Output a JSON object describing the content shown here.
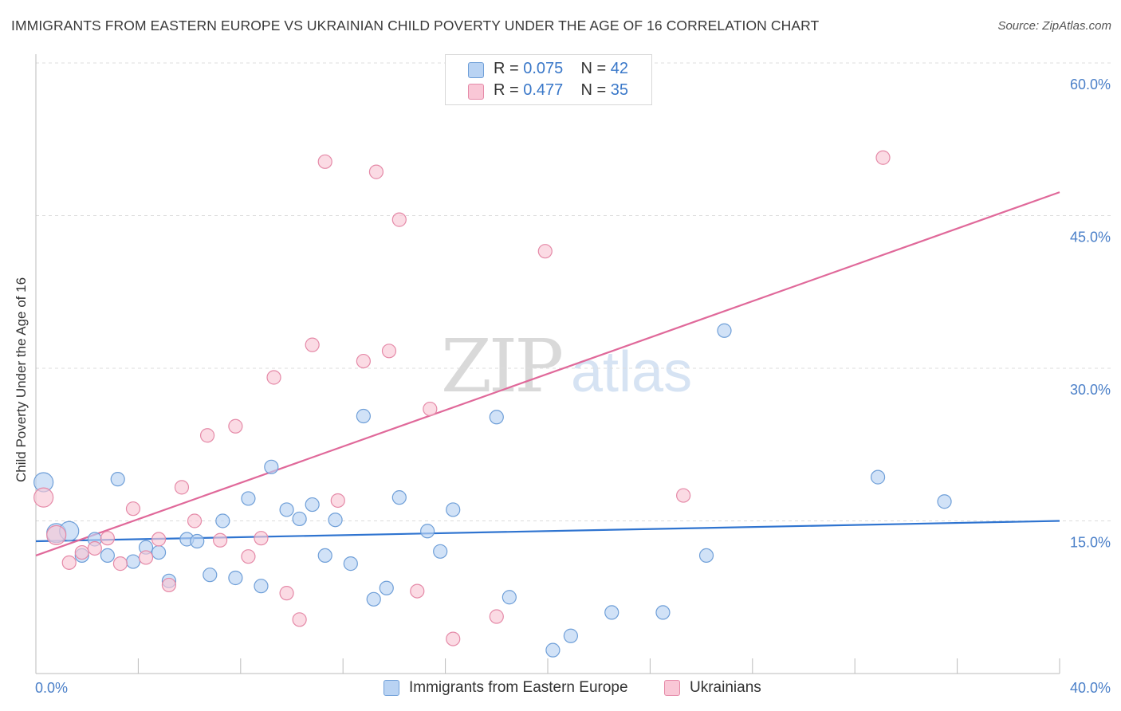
{
  "header": {
    "title": "IMMIGRANTS FROM EASTERN EUROPE VS UKRAINIAN CHILD POVERTY UNDER THE AGE OF 16 CORRELATION CHART",
    "source": "Source: ZipAtlas.com"
  },
  "watermark": {
    "zip": "ZIP",
    "atlas": "atlas"
  },
  "legend": {
    "r_label": "R =",
    "n_label": "N =",
    "series": [
      {
        "r": "0.075",
        "n": "42"
      },
      {
        "r": "0.477",
        "n": "35"
      }
    ]
  },
  "colors": {
    "blue_fill": "#b9d3f3",
    "blue_stroke": "#6f9fd8",
    "blue_line": "#2f74d0",
    "pink_fill": "#f9c7d6",
    "pink_stroke": "#e58aa8",
    "pink_line": "#e0699a",
    "tick_label": "#4a7fc8"
  },
  "chart_data": {
    "type": "scatter",
    "title": "IMMIGRANTS FROM EASTERN EUROPE VS UKRAINIAN CHILD POVERTY UNDER THE AGE OF 16 CORRELATION CHART",
    "xlabel": "",
    "ylabel": "Child Poverty Under the Age of 16",
    "xlim": [
      0,
      40
    ],
    "ylim": [
      0,
      60
    ],
    "x_tick_labels": [
      "0.0%",
      "40.0%"
    ],
    "y_ticks": [
      15,
      30,
      45,
      60
    ],
    "y_tick_labels": [
      "15.0%",
      "30.0%",
      "45.0%",
      "60.0%"
    ],
    "series": [
      {
        "name": "Immigrants from Eastern Europe",
        "color": "blue",
        "trend": {
          "x": [
            0,
            40
          ],
          "y": [
            13.0,
            15.0
          ]
        },
        "points": [
          {
            "x": 0.3,
            "y": 18.8,
            "big": true
          },
          {
            "x": 0.8,
            "y": 13.8,
            "big": true
          },
          {
            "x": 1.3,
            "y": 14.0,
            "big": true
          },
          {
            "x": 1.8,
            "y": 11.6
          },
          {
            "x": 2.3,
            "y": 13.2
          },
          {
            "x": 2.8,
            "y": 11.6
          },
          {
            "x": 3.2,
            "y": 19.1
          },
          {
            "x": 3.8,
            "y": 11.0
          },
          {
            "x": 4.3,
            "y": 12.4
          },
          {
            "x": 4.8,
            "y": 11.9
          },
          {
            "x": 5.2,
            "y": 9.1
          },
          {
            "x": 5.9,
            "y": 13.2
          },
          {
            "x": 6.3,
            "y": 13.0
          },
          {
            "x": 6.8,
            "y": 9.7
          },
          {
            "x": 7.3,
            "y": 15.0
          },
          {
            "x": 7.8,
            "y": 9.4
          },
          {
            "x": 8.3,
            "y": 17.2
          },
          {
            "x": 8.8,
            "y": 8.6
          },
          {
            "x": 9.2,
            "y": 20.3
          },
          {
            "x": 9.8,
            "y": 16.1
          },
          {
            "x": 10.3,
            "y": 15.2
          },
          {
            "x": 10.8,
            "y": 16.6
          },
          {
            "x": 11.3,
            "y": 11.6
          },
          {
            "x": 11.7,
            "y": 15.1
          },
          {
            "x": 12.3,
            "y": 10.8
          },
          {
            "x": 12.8,
            "y": 25.3
          },
          {
            "x": 13.2,
            "y": 7.3
          },
          {
            "x": 13.7,
            "y": 8.4
          },
          {
            "x": 14.2,
            "y": 17.3
          },
          {
            "x": 15.3,
            "y": 14.0
          },
          {
            "x": 15.8,
            "y": 12.0
          },
          {
            "x": 16.3,
            "y": 16.1
          },
          {
            "x": 18.0,
            "y": 25.2
          },
          {
            "x": 18.5,
            "y": 7.5
          },
          {
            "x": 20.2,
            "y": 2.3
          },
          {
            "x": 20.9,
            "y": 3.7
          },
          {
            "x": 22.5,
            "y": 6.0
          },
          {
            "x": 24.5,
            "y": 6.0
          },
          {
            "x": 26.2,
            "y": 11.6
          },
          {
            "x": 26.9,
            "y": 33.7
          },
          {
            "x": 32.9,
            "y": 19.3
          },
          {
            "x": 35.5,
            "y": 16.9
          }
        ]
      },
      {
        "name": "Ukrainians",
        "color": "pink",
        "trend": {
          "x": [
            0,
            40
          ],
          "y": [
            11.6,
            47.3
          ]
        },
        "points": [
          {
            "x": 0.3,
            "y": 17.3,
            "big": true
          },
          {
            "x": 0.8,
            "y": 13.6,
            "big": true
          },
          {
            "x": 1.3,
            "y": 10.9
          },
          {
            "x": 1.8,
            "y": 11.9
          },
          {
            "x": 2.3,
            "y": 12.3
          },
          {
            "x": 2.8,
            "y": 13.3
          },
          {
            "x": 3.3,
            "y": 10.8
          },
          {
            "x": 3.8,
            "y": 16.2
          },
          {
            "x": 4.3,
            "y": 11.4
          },
          {
            "x": 4.8,
            "y": 13.2
          },
          {
            "x": 5.2,
            "y": 8.7
          },
          {
            "x": 5.7,
            "y": 18.3
          },
          {
            "x": 6.2,
            "y": 15.0
          },
          {
            "x": 6.7,
            "y": 23.4
          },
          {
            "x": 7.2,
            "y": 13.1
          },
          {
            "x": 7.8,
            "y": 24.3
          },
          {
            "x": 8.3,
            "y": 11.5
          },
          {
            "x": 8.8,
            "y": 13.3
          },
          {
            "x": 9.3,
            "y": 29.1
          },
          {
            "x": 9.8,
            "y": 7.9
          },
          {
            "x": 10.3,
            "y": 5.3
          },
          {
            "x": 10.8,
            "y": 32.3
          },
          {
            "x": 11.3,
            "y": 50.3
          },
          {
            "x": 11.8,
            "y": 17.0
          },
          {
            "x": 12.8,
            "y": 30.7
          },
          {
            "x": 13.3,
            "y": 49.3
          },
          {
            "x": 13.8,
            "y": 31.7
          },
          {
            "x": 14.2,
            "y": 44.6
          },
          {
            "x": 14.9,
            "y": 8.1
          },
          {
            "x": 15.4,
            "y": 26.0
          },
          {
            "x": 16.3,
            "y": 3.4
          },
          {
            "x": 18.0,
            "y": 5.6
          },
          {
            "x": 19.9,
            "y": 41.5
          },
          {
            "x": 25.3,
            "y": 17.5
          },
          {
            "x": 33.1,
            "y": 50.7
          }
        ]
      }
    ]
  },
  "bottom_legend": [
    {
      "label": "Immigrants from Eastern Europe"
    },
    {
      "label": "Ukrainians"
    }
  ]
}
